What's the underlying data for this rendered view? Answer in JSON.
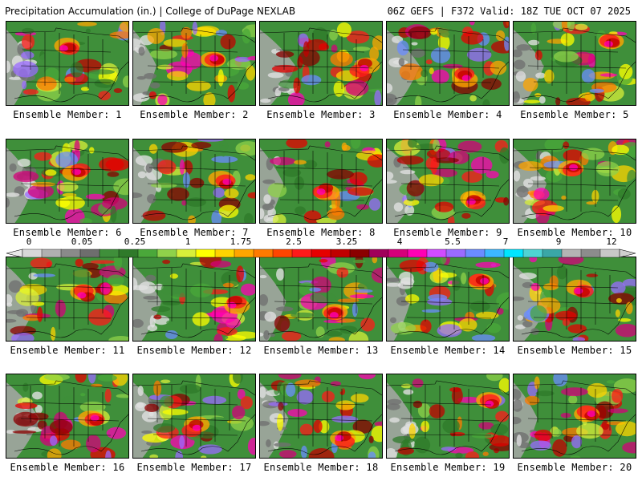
{
  "header": {
    "title": "Precipitation Accumulation (in.) | College of DuPage NEXLAB",
    "run_info": "06Z GEFS | F372 Valid: 18Z TUE OCT 07 2025"
  },
  "members": [
    {
      "label": "Ensemble Member: 1"
    },
    {
      "label": "Ensemble Member: 2"
    },
    {
      "label": "Ensemble Member: 3"
    },
    {
      "label": "Ensemble Member: 4"
    },
    {
      "label": "Ensemble Member: 5"
    },
    {
      "label": "Ensemble Member: 6"
    },
    {
      "label": "Ensemble Member: 7"
    },
    {
      "label": "Ensemble Member: 8"
    },
    {
      "label": "Ensemble Member: 9"
    },
    {
      "label": "Ensemble Member: 10"
    },
    {
      "label": "Ensemble Member: 11"
    },
    {
      "label": "Ensemble Member: 12"
    },
    {
      "label": "Ensemble Member: 13"
    },
    {
      "label": "Ensemble Member: 14"
    },
    {
      "label": "Ensemble Member: 15"
    },
    {
      "label": "Ensemble Member: 16"
    },
    {
      "label": "Ensemble Member: 17"
    },
    {
      "label": "Ensemble Member: 18"
    },
    {
      "label": "Ensemble Member: 19"
    },
    {
      "label": "Ensemble Member: 20"
    }
  ],
  "colorbar": {
    "labels": [
      "0",
      "0.05",
      "0.25",
      "1",
      "1.75",
      "2.5",
      "3.25",
      "4",
      "5.5",
      "7",
      "9",
      "12"
    ],
    "colors": [
      "#d8d8d8",
      "#b0b0b0",
      "#8a8a8a",
      "#6e6e6e",
      "#3f8f3a",
      "#2f7a2a",
      "#4aa83a",
      "#8fd24a",
      "#d8ef3a",
      "#ffff00",
      "#ffd400",
      "#ffa500",
      "#ff7a00",
      "#ff4500",
      "#ff1a1a",
      "#e60000",
      "#c00000",
      "#8b0000",
      "#a0005a",
      "#d4007a",
      "#ff00b4",
      "#d14bff",
      "#9a6bff",
      "#6b8cff",
      "#3cb8ff",
      "#00e5ff",
      "#4fd3d3",
      "#3aa7a7",
      "#b4b4b4",
      "#8c8c8c",
      "#c8c8c8"
    ]
  }
}
